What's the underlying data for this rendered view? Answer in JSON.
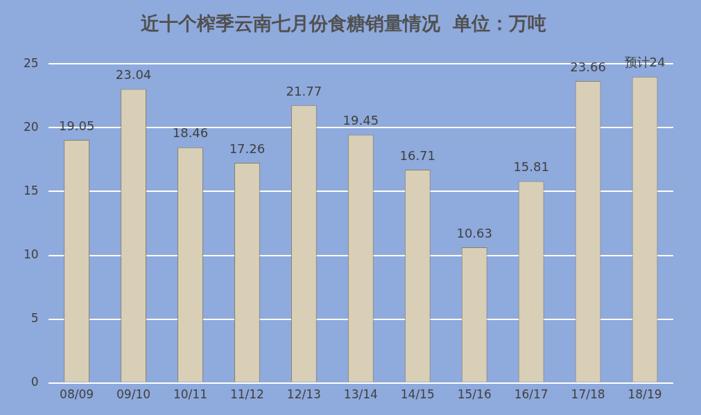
{
  "chart_data": {
    "type": "bar",
    "title": "近十个榨季云南七月份食糖销量情况  单位：万吨",
    "categories": [
      "08/09",
      "09/10",
      "10/11",
      "11/12",
      "12/13",
      "13/14",
      "14/15",
      "15/16",
      "16/17",
      "17/18",
      "18/19"
    ],
    "values": [
      19.05,
      23.04,
      18.46,
      17.26,
      21.77,
      19.45,
      16.71,
      10.63,
      15.81,
      23.66,
      24
    ],
    "value_labels": [
      "19.05",
      "23.04",
      "18.46",
      "17.26",
      "21.77",
      "19.45",
      "16.71",
      "10.63",
      "15.81",
      "23.66",
      "预计24"
    ],
    "color": "#d8cfb6",
    "ylim": [
      0,
      25
    ],
    "yticks": [
      0,
      5,
      10,
      15,
      20,
      25
    ],
    "grid": "y"
  }
}
